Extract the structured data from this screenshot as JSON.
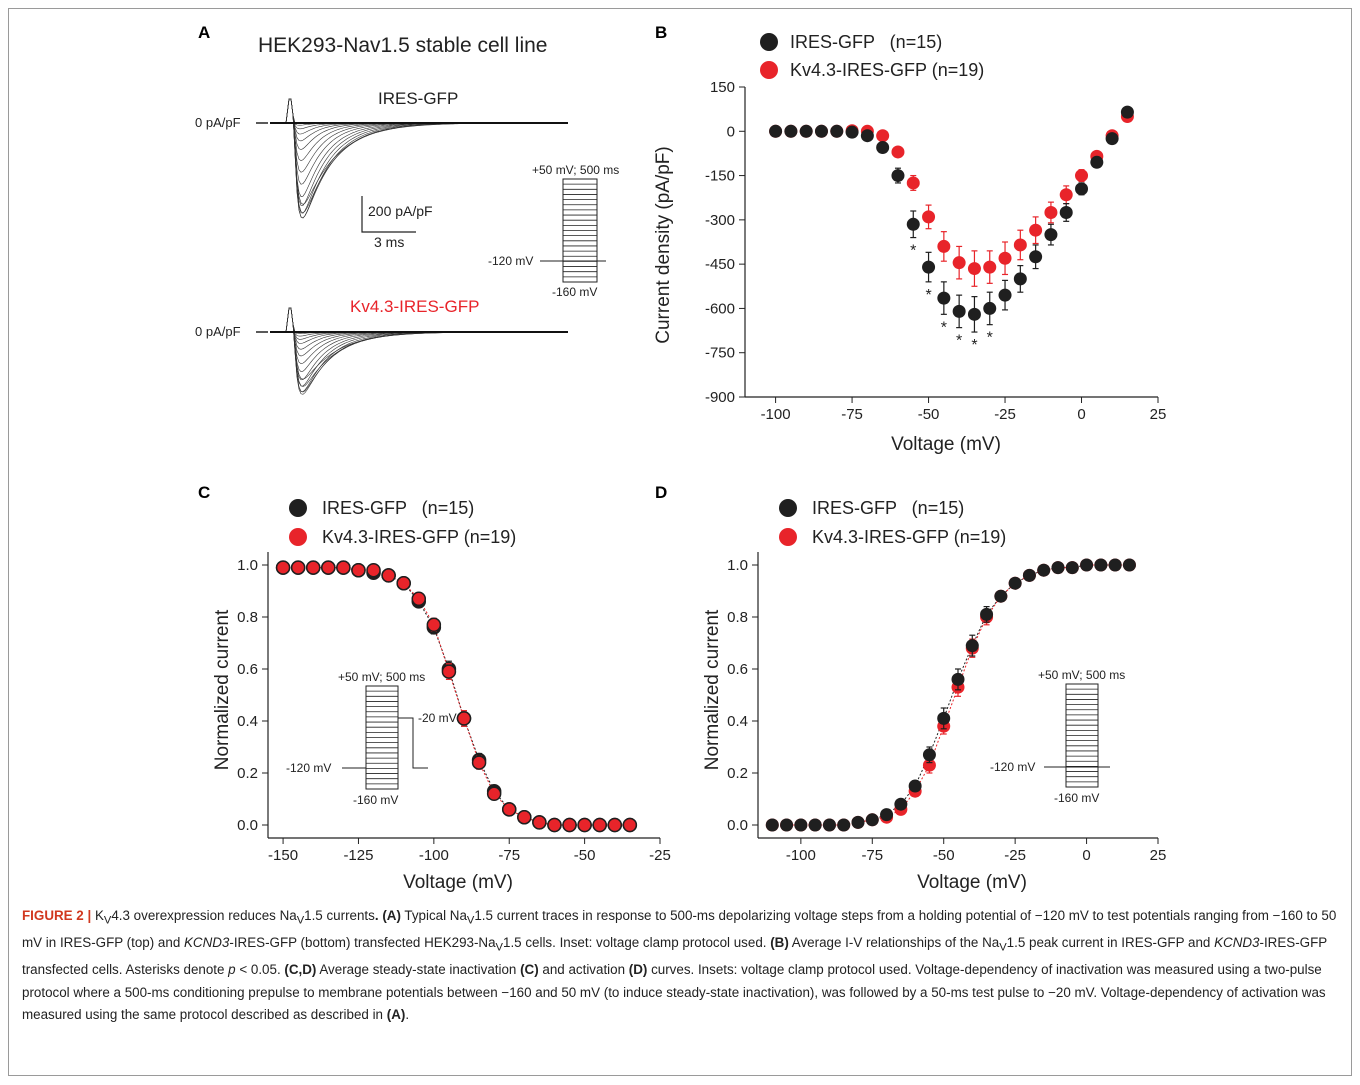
{
  "panel_a": {
    "label": "A",
    "title": "HEK293-Nav1.5 stable cell line",
    "top_trace_label": "IRES-GFP",
    "bottom_trace_label": "Kv4.3-IRES-GFP",
    "zero_label_top": "0 pA/pF",
    "zero_label_bottom": "0 pA/pF",
    "scale_y": "200 pA/pF",
    "scale_x": "3 ms",
    "inset_top": "+50 mV; 500 ms",
    "inset_hold": "-120 mV",
    "inset_bottom": "-160 mV"
  },
  "panel_b": {
    "label": "B",
    "asterisk": "*"
  },
  "panel_c": {
    "label": "C",
    "inset_top": "+50 mV; 500 ms",
    "inset_test": "-20 mV",
    "inset_hold": "-120 mV",
    "inset_bottom": "-160 mV"
  },
  "panel_d": {
    "label": "D",
    "inset_top": "+50 mV; 500 ms",
    "inset_hold": "-120 mV",
    "inset_bottom": "-160 mV"
  },
  "colors": {
    "ires_gfp": "#1f1f1f",
    "kv43": "#e8242a",
    "caption_label": "#d1381f"
  },
  "chart_data": [
    {
      "panel": "B",
      "type": "scatter",
      "xlabel": "Voltage (mV)",
      "ylabel": "Current density (pA/pF)",
      "xlim": [
        -110,
        25
      ],
      "ylim": [
        -900,
        150
      ],
      "xticks": [
        -100,
        -75,
        -50,
        -25,
        0,
        25
      ],
      "yticks": [
        150,
        0,
        -150,
        -300,
        -450,
        -600,
        -750,
        -900
      ],
      "legend_position": "top-left",
      "x": [
        -100,
        -95,
        -90,
        -85,
        -80,
        -75,
        -70,
        -65,
        -60,
        -55,
        -50,
        -45,
        -40,
        -35,
        -30,
        -25,
        -20,
        -15,
        -10,
        -5,
        0,
        5,
        10,
        15
      ],
      "significant_x": [
        -55,
        -50,
        -45,
        -40,
        -35,
        -30
      ],
      "series": [
        {
          "name": "IRES-GFP   (n=15)",
          "color": "#1f1f1f",
          "values": [
            0,
            0,
            0,
            0,
            0,
            -3,
            -15,
            -55,
            -150,
            -315,
            -460,
            -565,
            -610,
            -620,
            -600,
            -555,
            -500,
            -425,
            -350,
            -275,
            -195,
            -105,
            -25,
            65
          ],
          "errors": [
            3,
            3,
            3,
            3,
            3,
            5,
            8,
            12,
            25,
            45,
            50,
            55,
            55,
            60,
            55,
            50,
            45,
            40,
            35,
            30,
            20,
            15,
            10,
            8
          ]
        },
        {
          "name": "Kv4.3-IRES-GFP (n=19)",
          "color": "#e8242a",
          "values": [
            0,
            0,
            0,
            0,
            0,
            2,
            0,
            -15,
            -70,
            -175,
            -290,
            -390,
            -445,
            -465,
            -460,
            -430,
            -385,
            -335,
            -275,
            -215,
            -150,
            -85,
            -15,
            50
          ],
          "errors": [
            3,
            3,
            3,
            3,
            3,
            4,
            6,
            10,
            15,
            25,
            40,
            50,
            55,
            60,
            55,
            55,
            50,
            45,
            35,
            30,
            20,
            15,
            10,
            8
          ]
        }
      ]
    },
    {
      "panel": "C",
      "type": "scatter",
      "xlabel": "Voltage (mV)",
      "ylabel": "Normalized current",
      "xlim": [
        -155,
        -25
      ],
      "ylim": [
        -0.05,
        1.05
      ],
      "xticks": [
        -150,
        -125,
        -100,
        -75,
        -50,
        -25
      ],
      "yticks": [
        0.0,
        0.2,
        0.4,
        0.6,
        0.8,
        1.0
      ],
      "legend_position": "top-left",
      "x": [
        -150,
        -145,
        -140,
        -135,
        -130,
        -125,
        -120,
        -115,
        -110,
        -105,
        -100,
        -95,
        -90,
        -85,
        -80,
        -75,
        -70,
        -65,
        -60,
        -55,
        -50,
        -45,
        -40,
        -35
      ],
      "series": [
        {
          "name": "IRES-GFP   (n=15)",
          "color": "#1f1f1f",
          "values": [
            0.99,
            0.99,
            0.99,
            0.99,
            0.99,
            0.98,
            0.97,
            0.96,
            0.93,
            0.86,
            0.76,
            0.6,
            0.41,
            0.25,
            0.13,
            0.06,
            0.03,
            0.01,
            0.0,
            0.0,
            0.0,
            0.0,
            0.0,
            0.0
          ],
          "errors": [
            0.01,
            0.01,
            0.01,
            0.01,
            0.01,
            0.01,
            0.01,
            0.01,
            0.015,
            0.02,
            0.025,
            0.03,
            0.03,
            0.025,
            0.015,
            0.01,
            0.01,
            0.01,
            0.01,
            0.01,
            0.01,
            0.01,
            0.01,
            0.01
          ]
        },
        {
          "name": "Kv4.3-IRES-GFP (n=19)",
          "color": "#e8242a",
          "values": [
            0.99,
            0.99,
            0.99,
            0.99,
            0.99,
            0.98,
            0.98,
            0.96,
            0.93,
            0.87,
            0.77,
            0.59,
            0.41,
            0.24,
            0.12,
            0.06,
            0.03,
            0.01,
            0.0,
            0.0,
            0.0,
            0.0,
            0.0,
            0.0
          ],
          "errors": [
            0.01,
            0.01,
            0.01,
            0.01,
            0.01,
            0.01,
            0.01,
            0.01,
            0.015,
            0.02,
            0.025,
            0.03,
            0.03,
            0.025,
            0.015,
            0.01,
            0.01,
            0.01,
            0.01,
            0.01,
            0.01,
            0.01,
            0.01,
            0.01
          ]
        }
      ]
    },
    {
      "panel": "D",
      "type": "scatter",
      "xlabel": "Voltage (mV)",
      "ylabel": "Normalized current",
      "xlim": [
        -115,
        25
      ],
      "ylim": [
        -0.05,
        1.05
      ],
      "xticks": [
        -100,
        -75,
        -50,
        -25,
        0,
        25
      ],
      "yticks": [
        0.0,
        0.2,
        0.4,
        0.6,
        0.8,
        1.0
      ],
      "legend_position": "top-left",
      "x": [
        -110,
        -105,
        -100,
        -95,
        -90,
        -85,
        -80,
        -75,
        -70,
        -65,
        -60,
        -55,
        -50,
        -45,
        -40,
        -35,
        -30,
        -25,
        -20,
        -15,
        -10,
        -5,
        0,
        5,
        10,
        15
      ],
      "series": [
        {
          "name": "IRES-GFP   (n=15)",
          "color": "#1f1f1f",
          "values": [
            0.0,
            0.0,
            0.0,
            0.0,
            0.0,
            0.0,
            0.01,
            0.02,
            0.04,
            0.08,
            0.15,
            0.27,
            0.41,
            0.56,
            0.69,
            0.81,
            0.88,
            0.93,
            0.96,
            0.98,
            0.99,
            0.99,
            1.0,
            1.0,
            1.0,
            1.0
          ],
          "errors": [
            0.01,
            0.01,
            0.01,
            0.01,
            0.01,
            0.01,
            0.01,
            0.01,
            0.01,
            0.015,
            0.02,
            0.03,
            0.04,
            0.04,
            0.04,
            0.03,
            0.02,
            0.015,
            0.01,
            0.01,
            0.01,
            0.01,
            0.01,
            0.01,
            0.01,
            0.01
          ]
        },
        {
          "name": "Kv4.3-IRES-GFP (n=19)",
          "color": "#e8242a",
          "values": [
            0.0,
            0.0,
            0.0,
            0.0,
            0.0,
            0.0,
            0.01,
            0.02,
            0.03,
            0.06,
            0.13,
            0.23,
            0.38,
            0.53,
            0.68,
            0.8,
            0.88,
            0.93,
            0.96,
            0.98,
            0.99,
            0.99,
            1.0,
            1.0,
            1.0,
            1.0
          ],
          "errors": [
            0.01,
            0.01,
            0.01,
            0.01,
            0.01,
            0.01,
            0.01,
            0.01,
            0.01,
            0.015,
            0.02,
            0.03,
            0.03,
            0.035,
            0.035,
            0.03,
            0.02,
            0.015,
            0.01,
            0.01,
            0.01,
            0.01,
            0.01,
            0.01,
            0.01,
            0.01
          ]
        }
      ]
    }
  ],
  "caption": {
    "fig_label": "FIGURE 2 |",
    "t1": " K",
    "t1_sub": "V",
    "t2": "4.3 overexpression reduces Na",
    "t2_sub": "V",
    "t3": "1.5 currents",
    "t3b": ".",
    "a_label": " (A)",
    "t4": " Typical Na",
    "t4_sub": "V",
    "t5": "1.5 current traces in response to 500-ms depolarizing voltage steps from a holding potential of −120 mV to test potentials ranging from −160 to 50 mV in IRES-GFP (top) and ",
    "gene1": "KCND3",
    "t6": "-IRES-GFP (bottom) transfected HEK293-Na",
    "t6_sub": "V",
    "t7": "1.5 cells. Inset: voltage clamp protocol used. ",
    "b_label": "(B)",
    "t8": " Average I-V relationships of the Na",
    "t8_sub": "V",
    "t9": "1.5 peak current in IRES-GFP and ",
    "gene2": "KCND3",
    "t10": "-IRES-GFP transfected cells. Asterisks denote ",
    "p_italic": "p",
    "t11": " < 0.05. ",
    "cd_label": "(C,D)",
    "t12": " Average steady-state inactivation ",
    "c_label": "(C)",
    "t13": " and activation ",
    "d_label": "(D)",
    "t14": " curves. Insets: voltage clamp protocol used. Voltage-dependency of inactivation was measured using a two-pulse protocol where a 500-ms conditioning prepulse to membrane potentials between −160 and 50 mV (to induce steady-state inactivation), was followed by a 50-ms test pulse to −20 mV. Voltage-dependency of activation was measured using the same protocol described as described in ",
    "a_label2": "(A)",
    "t15": "."
  }
}
